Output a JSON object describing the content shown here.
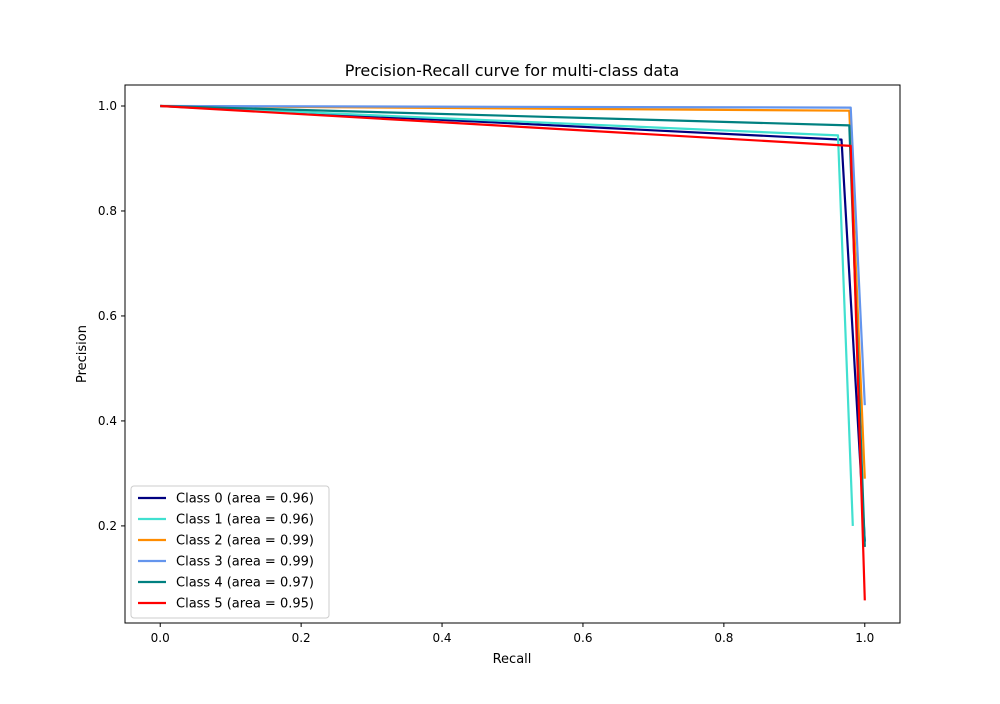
{
  "chart_data": {
    "type": "line",
    "title": "Precision-Recall curve for multi-class data",
    "xlabel": "Recall",
    "ylabel": "Precision",
    "xlim": [
      -0.05,
      1.05
    ],
    "ylim": [
      0.015,
      1.04
    ],
    "xticks": [
      0.0,
      0.2,
      0.4,
      0.6,
      0.8,
      1.0
    ],
    "xtick_labels": [
      "0.0",
      "0.2",
      "0.4",
      "0.6",
      "0.8",
      "1.0"
    ],
    "yticks": [
      0.2,
      0.4,
      0.6,
      0.8,
      1.0
    ],
    "ytick_labels": [
      "0.2",
      "0.4",
      "0.6",
      "0.8",
      "1.0"
    ],
    "grid": false,
    "legend_position": "lower-left",
    "series": [
      {
        "name": "Class 0 (area = 0.96)",
        "color": "#000080",
        "x": [
          0.0,
          0.967,
          1.0
        ],
        "y": [
          1.0,
          0.936,
          0.17
        ]
      },
      {
        "name": "Class 1 (area = 0.96)",
        "color": "#40E0D0",
        "x": [
          0.0,
          0.962,
          0.983
        ],
        "y": [
          1.0,
          0.944,
          0.2
        ]
      },
      {
        "name": "Class 2 (area = 0.99)",
        "color": "#FF8C00",
        "x": [
          0.0,
          0.978,
          1.0
        ],
        "y": [
          1.0,
          0.991,
          0.29
        ]
      },
      {
        "name": "Class 3 (area = 0.99)",
        "color": "#6495ED",
        "x": [
          0.0,
          0.98,
          1.0
        ],
        "y": [
          1.0,
          0.997,
          0.43
        ]
      },
      {
        "name": "Class 4 (area = 0.97)",
        "color": "#008080",
        "x": [
          0.0,
          0.978,
          1.0
        ],
        "y": [
          1.0,
          0.963,
          0.16
        ]
      },
      {
        "name": "Class 5 (area = 0.95)",
        "color": "#FF0000",
        "x": [
          0.0,
          0.98,
          1.0
        ],
        "y": [
          1.0,
          0.924,
          0.058
        ]
      }
    ]
  }
}
